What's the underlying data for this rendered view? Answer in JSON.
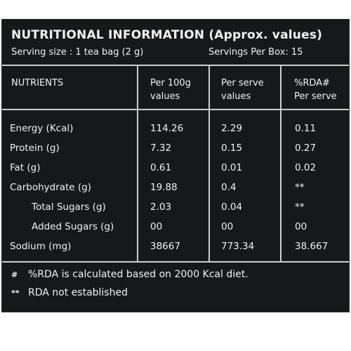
{
  "panel": {
    "title": "NUTRITIONAL INFORMATION (Approx. values)",
    "serving_size": "Serving size : 1 tea bag (2 g)",
    "servings_per_box": "Servings Per Box: 15"
  },
  "table": {
    "headers": {
      "nutrients": "NUTRIENTS",
      "per100g_line1": "Per 100g",
      "per100g_line2": "values",
      "perserve_line1": "Per serve",
      "perserve_line2": "values",
      "rda_line1": "%RDA#",
      "rda_line2": "Per serve"
    },
    "rows": [
      {
        "name": "Energy (Kcal)",
        "per100g": "114.26",
        "perserve": "2.29",
        "rda": "0.11"
      },
      {
        "name": "Protein (g)",
        "per100g": "7.32",
        "perserve": "0.15",
        "rda": "0.27"
      },
      {
        "name": "Fat (g)",
        "per100g": "0.61",
        "perserve": "0.01",
        "rda": "0.02"
      },
      {
        "name": "Carbohydrate (g)",
        "per100g": "19.88",
        "perserve": "0.4",
        "rda": "**"
      },
      {
        "name": "Total Sugars (g)",
        "per100g": "2.03",
        "perserve": "0.04",
        "rda": "**"
      },
      {
        "name": "Added Sugars (g)",
        "per100g": "00",
        "perserve": "00",
        "rda": "00"
      },
      {
        "name": "Sodium (mg)",
        "per100g": "38667",
        "perserve": "773.34",
        "rda": "38.667"
      }
    ]
  },
  "footnotes": [
    {
      "mark": "#",
      "text": "%RDA is calculated based on 2000 Kcal diet."
    },
    {
      "mark": "**",
      "text": "RDA not established"
    }
  ]
}
